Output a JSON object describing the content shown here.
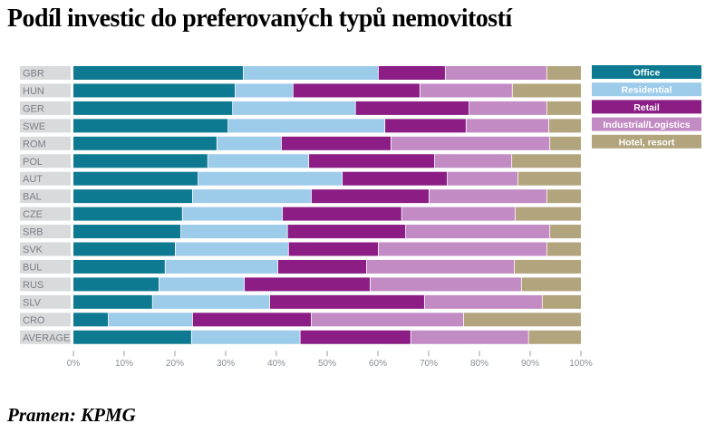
{
  "title": "Podíl investic do preferovaných typů nemovitostí",
  "source": "Pramen: KPMG",
  "chart_data": {
    "type": "bar",
    "orientation": "horizontal",
    "stacked": true,
    "title": "Podíl investic do preferovaných typů nemovitostí",
    "xlabel": "",
    "ylabel": "",
    "xlim": [
      0,
      100
    ],
    "x_ticks": [
      "0%",
      "10%",
      "20%",
      "30%",
      "40%",
      "50%",
      "60%",
      "70%",
      "80%",
      "90%",
      "100%"
    ],
    "legend_position": "right",
    "categories": [
      "GBR",
      "HUN",
      "GER",
      "SWE",
      "ROM",
      "POL",
      "AUT",
      "BAL",
      "CZE",
      "SRB",
      "SVK",
      "BUL",
      "RUS",
      "SLV",
      "CRO",
      "AVERAGE"
    ],
    "series": [
      {
        "name": "Office",
        "color": "#0e7a91",
        "text_color": "#ffffff",
        "values": [
          33.4,
          31.8,
          31.3,
          30.4,
          28.2,
          26.4,
          24.5,
          23.4,
          21.4,
          21.1,
          20.0,
          18.0,
          16.8,
          15.5,
          6.8,
          23.2
        ]
      },
      {
        "name": "Residential",
        "color": "#9dcbea",
        "text_color": "#ffffff",
        "values": [
          26.6,
          11.4,
          24.2,
          30.9,
          12.7,
          19.9,
          28.4,
          23.4,
          19.7,
          21.0,
          22.3,
          22.2,
          16.8,
          23.1,
          16.6,
          21.4
        ]
      },
      {
        "name": "Retail",
        "color": "#8b1d85",
        "text_color": "#ffffff",
        "values": [
          13.2,
          25.0,
          22.4,
          16.0,
          21.6,
          24.8,
          20.7,
          23.2,
          23.5,
          23.3,
          17.7,
          17.5,
          24.8,
          30.5,
          23.4,
          21.8
        ]
      },
      {
        "name": "Industrial/Logistics",
        "color": "#c28bc4",
        "text_color": "#ffffff",
        "values": [
          20.0,
          18.2,
          15.3,
          16.3,
          31.3,
          15.2,
          13.9,
          23.2,
          22.4,
          28.4,
          33.2,
          29.1,
          29.8,
          23.2,
          30.0,
          23.2
        ]
      },
      {
        "name": "Hotel, resort",
        "color": "#b2a57e",
        "text_color": "#ffffff",
        "values": [
          6.8,
          13.6,
          6.8,
          6.4,
          6.2,
          13.7,
          12.5,
          6.8,
          13.0,
          6.2,
          6.8,
          13.2,
          11.8,
          7.7,
          23.2,
          10.4
        ]
      }
    ]
  }
}
